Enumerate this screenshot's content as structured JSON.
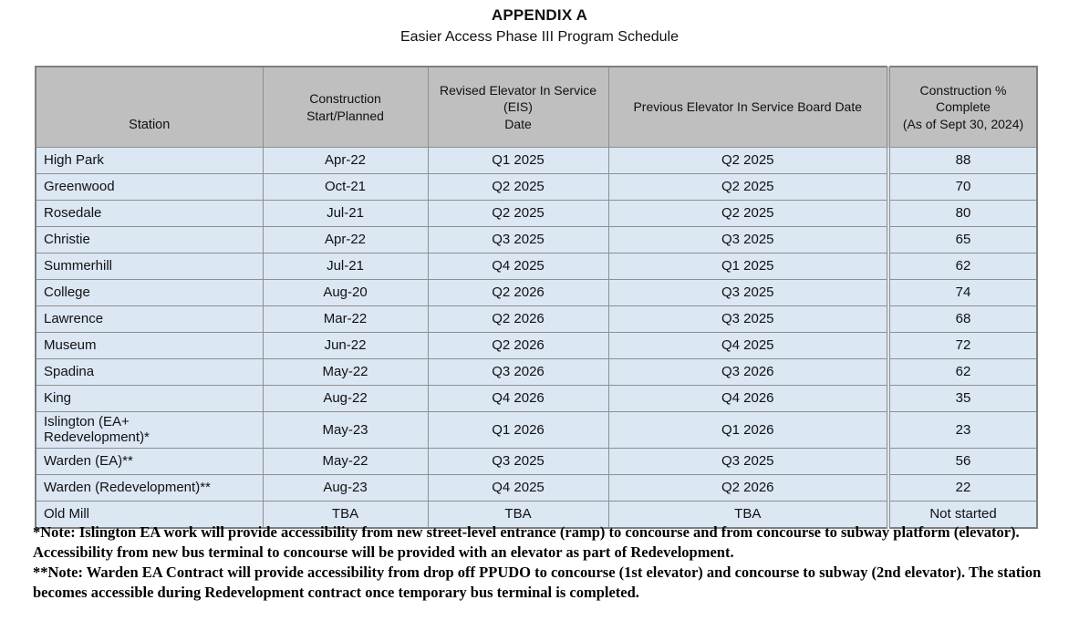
{
  "title": "APPENDIX A",
  "subtitle": "Easier Access Phase III Program Schedule",
  "table": {
    "columns": [
      "Station",
      "Construction Start/Planned",
      "Revised Elevator In Service (EIS)\nDate",
      "Previous Elevator In Service Board Date",
      "Construction % Complete\n(As of Sept 30, 2024)"
    ],
    "column_keys": [
      "station",
      "construction-start",
      "revised-eis-date",
      "previous-board-date",
      "pct-complete"
    ],
    "rows": [
      [
        "High Park",
        "Apr-22",
        "Q1 2025",
        "Q2 2025",
        "88"
      ],
      [
        "Greenwood",
        "Oct-21",
        "Q2 2025",
        "Q2 2025",
        "70"
      ],
      [
        "Rosedale",
        "Jul-21",
        "Q2 2025",
        "Q2 2025",
        "80"
      ],
      [
        "Christie",
        "Apr-22",
        "Q3 2025",
        "Q3 2025",
        "65"
      ],
      [
        "Summerhill",
        "Jul-21",
        "Q4 2025",
        "Q1 2025",
        "62"
      ],
      [
        "College",
        "Aug-20",
        "Q2 2026",
        "Q3 2025",
        "74"
      ],
      [
        "Lawrence",
        "Mar-22",
        "Q2 2026",
        "Q3 2025",
        "68"
      ],
      [
        "Museum",
        "Jun-22",
        "Q2 2026",
        "Q4 2025",
        "72"
      ],
      [
        "Spadina",
        "May-22",
        "Q3 2026",
        "Q3 2026",
        "62"
      ],
      [
        "King",
        "Aug-22",
        "Q4 2026",
        "Q4 2026",
        "35"
      ],
      [
        "Islington (EA+\nRedevelopment)*",
        "May-23",
        "Q1 2026",
        "Q1 2026",
        "23"
      ],
      [
        "Warden (EA)**",
        "May-22",
        "Q3 2025",
        "Q3 2025",
        "56"
      ],
      [
        "Warden (Redevelopment)**",
        "Aug-23",
        "Q4 2025",
        "Q2 2026",
        "22"
      ],
      [
        "Old Mill",
        "TBA",
        "TBA",
        "TBA",
        "Not started"
      ]
    ]
  },
  "notes": [
    "*Note: Islington EA work will provide accessibility from new street-level entrance (ramp) to concourse and from concourse to subway platform (elevator). Accessibility from new bus terminal to concourse will be provided with an elevator as part of Redevelopment.",
    "**Note: Warden EA Contract will provide accessibility from drop off PPUDO to concourse (1st elevator) and concourse to subway (2nd elevator). The station becomes accessible during Redevelopment contract once temporary bus terminal is completed."
  ],
  "colors": {
    "header_bg": "#bfbfbf",
    "row_bg": "#dbe7f3",
    "border": "#8f8f8f",
    "outer_border": "#7f7f7f"
  }
}
